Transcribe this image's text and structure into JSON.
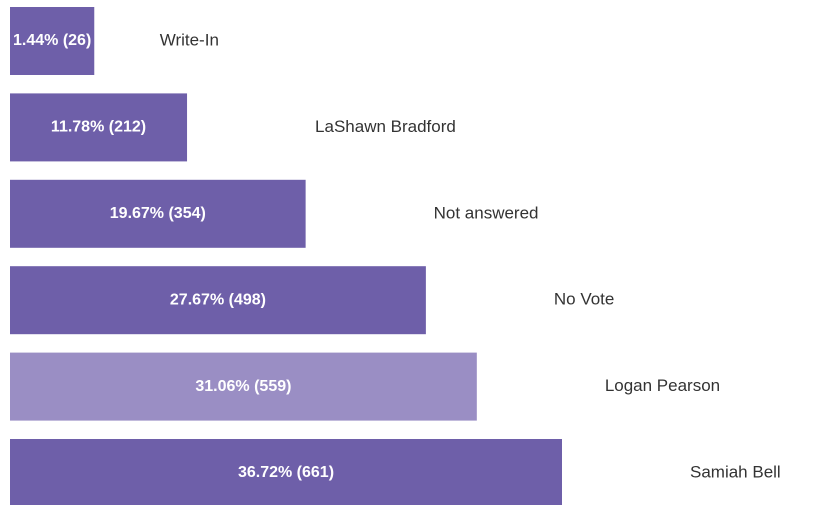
{
  "chart_data": {
    "type": "bar",
    "orientation": "horizontal",
    "categories": [
      "Write-In",
      "LaShawn Bradford",
      "Not answered",
      "No Vote",
      "Logan Pearson",
      "Samiah Bell"
    ],
    "values": [
      26,
      212,
      354,
      498,
      559,
      661
    ],
    "value_labels": [
      "1.44% (26)",
      "11.78% (212)",
      "19.67% (354)",
      "27.67% (498)",
      "31.06% (559)",
      "36.72% (661)"
    ],
    "colors": [
      "#6e5fa9",
      "#6e5fa9",
      "#6e5fa9",
      "#6e5fa9",
      "#9a8ec4",
      "#6e5fa9"
    ]
  }
}
